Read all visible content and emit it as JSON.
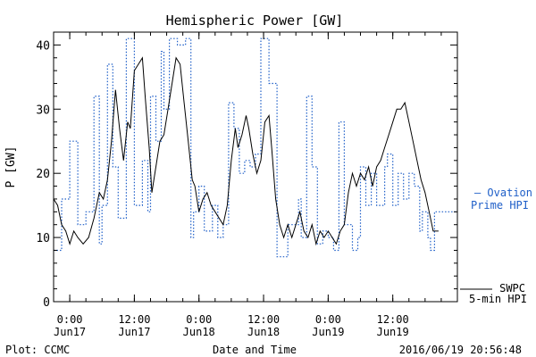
{
  "chart_data": {
    "type": "line",
    "title": "Hemispheric Power [GW]",
    "xlabel": "Date and Time",
    "ylabel": "P [GW]",
    "xlim": [
      "2016-06-16T21:00",
      "2016-06-20T00:00"
    ],
    "ylim": [
      0,
      42
    ],
    "grid": false,
    "y_ticks": [
      0,
      10,
      20,
      30,
      40
    ],
    "x_ticks": [
      {
        "t": "2016-06-17T00:00",
        "time": "0:00",
        "date": "Jun17"
      },
      {
        "t": "2016-06-17T12:00",
        "time": "12:00",
        "date": "Jun17"
      },
      {
        "t": "2016-06-18T00:00",
        "time": "0:00",
        "date": "Jun18"
      },
      {
        "t": "2016-06-18T12:00",
        "time": "12:00",
        "date": "Jun18"
      },
      {
        "t": "2016-06-19T00:00",
        "time": "0:00",
        "date": "Jun19"
      },
      {
        "t": "2016-06-19T12:00",
        "time": "12:00",
        "date": "Jun19"
      }
    ],
    "series": [
      {
        "name": "— Ovation Prime HPI",
        "legend_lines": [
          "— Ovation",
          "Prime HPI"
        ],
        "color": "#1f5fc8",
        "style": "dotted-step",
        "points": [
          [
            "2016-06-16T21:00",
            8
          ],
          [
            "2016-06-16T22:30",
            16
          ],
          [
            "2016-06-17T00:00",
            25
          ],
          [
            "2016-06-17T01:30",
            12
          ],
          [
            "2016-06-17T03:00",
            14
          ],
          [
            "2016-06-17T04:30",
            32
          ],
          [
            "2016-06-17T05:30",
            9
          ],
          [
            "2016-06-17T06:00",
            15
          ],
          [
            "2016-06-17T07:00",
            37
          ],
          [
            "2016-06-17T08:00",
            21
          ],
          [
            "2016-06-17T09:00",
            13
          ],
          [
            "2016-06-17T10:30",
            41
          ],
          [
            "2016-06-17T12:00",
            15
          ],
          [
            "2016-06-17T13:30",
            22
          ],
          [
            "2016-06-17T14:30",
            14
          ],
          [
            "2016-06-17T15:00",
            32
          ],
          [
            "2016-06-17T16:00",
            25
          ],
          [
            "2016-06-17T17:00",
            39
          ],
          [
            "2016-06-17T17:30",
            30
          ],
          [
            "2016-06-17T18:30",
            41
          ],
          [
            "2016-06-17T20:00",
            40
          ],
          [
            "2016-06-17T21:30",
            41
          ],
          [
            "2016-06-17T22:30",
            10
          ],
          [
            "2016-06-17T23:00",
            14
          ],
          [
            "2016-06-18T00:00",
            18
          ],
          [
            "2016-06-18T01:00",
            11
          ],
          [
            "2016-06-18T02:30",
            15
          ],
          [
            "2016-06-18T03:30",
            10
          ],
          [
            "2016-06-18T04:30",
            12
          ],
          [
            "2016-06-18T05:30",
            31
          ],
          [
            "2016-06-18T06:30",
            27
          ],
          [
            "2016-06-18T07:30",
            20
          ],
          [
            "2016-06-18T08:30",
            22
          ],
          [
            "2016-06-18T09:30",
            21
          ],
          [
            "2016-06-18T10:30",
            23
          ],
          [
            "2016-06-18T11:30",
            41
          ],
          [
            "2016-06-18T13:00",
            34
          ],
          [
            "2016-06-18T14:30",
            7
          ],
          [
            "2016-06-18T15:30",
            7
          ],
          [
            "2016-06-18T16:30",
            12
          ],
          [
            "2016-06-18T17:30",
            12
          ],
          [
            "2016-06-18T18:30",
            16
          ],
          [
            "2016-06-18T19:00",
            10
          ],
          [
            "2016-06-18T20:00",
            32
          ],
          [
            "2016-06-18T21:00",
            21
          ],
          [
            "2016-06-18T22:00",
            9
          ],
          [
            "2016-06-18T23:00",
            11
          ],
          [
            "2016-06-19T00:00",
            10
          ],
          [
            "2016-06-19T01:00",
            8
          ],
          [
            "2016-06-19T02:00",
            28
          ],
          [
            "2016-06-19T03:00",
            12
          ],
          [
            "2016-06-19T04:30",
            8
          ],
          [
            "2016-06-19T05:30",
            10
          ],
          [
            "2016-06-19T06:00",
            21
          ],
          [
            "2016-06-19T07:00",
            15
          ],
          [
            "2016-06-19T08:00",
            20
          ],
          [
            "2016-06-19T09:00",
            15
          ],
          [
            "2016-06-19T10:30",
            21
          ],
          [
            "2016-06-19T11:00",
            23
          ],
          [
            "2016-06-19T12:00",
            15
          ],
          [
            "2016-06-19T13:00",
            20
          ],
          [
            "2016-06-19T14:00",
            16
          ],
          [
            "2016-06-19T15:00",
            20
          ],
          [
            "2016-06-19T16:00",
            18
          ],
          [
            "2016-06-19T17:00",
            11
          ],
          [
            "2016-06-19T17:30",
            14
          ],
          [
            "2016-06-19T18:30",
            10
          ],
          [
            "2016-06-19T19:00",
            8
          ],
          [
            "2016-06-19T19:45",
            14
          ]
        ]
      },
      {
        "name": "SWPC 5-min HPI",
        "legend_lines": [
          "SWPC",
          "5-min HPI"
        ],
        "color": "#000000",
        "style": "solid",
        "points": [
          [
            "2016-06-16T21:00",
            16
          ],
          [
            "2016-06-16T21:45",
            15
          ],
          [
            "2016-06-16T22:30",
            12
          ],
          [
            "2016-06-16T23:15",
            11
          ],
          [
            "2016-06-17T00:00",
            9
          ],
          [
            "2016-06-17T00:45",
            11
          ],
          [
            "2016-06-17T01:30",
            10
          ],
          [
            "2016-06-17T02:30",
            9
          ],
          [
            "2016-06-17T03:30",
            10
          ],
          [
            "2016-06-17T04:30",
            13
          ],
          [
            "2016-06-17T05:30",
            17
          ],
          [
            "2016-06-17T06:15",
            16
          ],
          [
            "2016-06-17T07:00",
            19
          ],
          [
            "2016-06-17T07:45",
            25
          ],
          [
            "2016-06-17T08:30",
            33
          ],
          [
            "2016-06-17T09:15",
            27
          ],
          [
            "2016-06-17T10:00",
            22
          ],
          [
            "2016-06-17T10:45",
            28
          ],
          [
            "2016-06-17T11:15",
            27
          ],
          [
            "2016-06-17T12:00",
            36
          ],
          [
            "2016-06-17T12:45",
            37
          ],
          [
            "2016-06-17T13:30",
            38
          ],
          [
            "2016-06-17T14:00",
            32
          ],
          [
            "2016-06-17T14:45",
            24
          ],
          [
            "2016-06-17T15:15",
            17
          ],
          [
            "2016-06-17T16:00",
            21
          ],
          [
            "2016-06-17T16:45",
            25
          ],
          [
            "2016-06-17T17:30",
            26
          ],
          [
            "2016-06-17T18:15",
            30
          ],
          [
            "2016-06-17T19:00",
            34
          ],
          [
            "2016-06-17T19:45",
            38
          ],
          [
            "2016-06-17T20:30",
            37
          ],
          [
            "2016-06-17T21:15",
            31
          ],
          [
            "2016-06-17T22:00",
            25
          ],
          [
            "2016-06-17T22:45",
            19
          ],
          [
            "2016-06-17T23:15",
            18
          ],
          [
            "2016-06-18T00:00",
            14
          ],
          [
            "2016-06-18T00:45",
            16
          ],
          [
            "2016-06-18T01:30",
            17
          ],
          [
            "2016-06-18T02:15",
            15
          ],
          [
            "2016-06-18T03:00",
            14
          ],
          [
            "2016-06-18T03:45",
            13
          ],
          [
            "2016-06-18T04:30",
            12
          ],
          [
            "2016-06-18T05:15",
            15
          ],
          [
            "2016-06-18T06:00",
            22
          ],
          [
            "2016-06-18T06:45",
            27
          ],
          [
            "2016-06-18T07:15",
            24
          ],
          [
            "2016-06-18T08:00",
            26
          ],
          [
            "2016-06-18T08:45",
            29
          ],
          [
            "2016-06-18T09:15",
            27
          ],
          [
            "2016-06-18T10:00",
            23
          ],
          [
            "2016-06-18T10:45",
            20
          ],
          [
            "2016-06-18T11:30",
            22
          ],
          [
            "2016-06-18T12:15",
            28
          ],
          [
            "2016-06-18T13:00",
            29
          ],
          [
            "2016-06-18T13:30",
            24
          ],
          [
            "2016-06-18T14:15",
            16
          ],
          [
            "2016-06-18T15:00",
            12
          ],
          [
            "2016-06-18T15:45",
            10
          ],
          [
            "2016-06-18T16:30",
            12
          ],
          [
            "2016-06-18T17:15",
            10
          ],
          [
            "2016-06-18T18:00",
            12
          ],
          [
            "2016-06-18T18:45",
            14
          ],
          [
            "2016-06-18T19:30",
            11
          ],
          [
            "2016-06-18T20:15",
            10
          ],
          [
            "2016-06-18T21:00",
            12
          ],
          [
            "2016-06-18T21:45",
            9
          ],
          [
            "2016-06-18T22:30",
            11
          ],
          [
            "2016-06-18T23:15",
            10
          ],
          [
            "2016-06-19T00:00",
            11
          ],
          [
            "2016-06-19T00:45",
            10
          ],
          [
            "2016-06-19T01:30",
            9
          ],
          [
            "2016-06-19T02:15",
            11
          ],
          [
            "2016-06-19T03:00",
            12
          ],
          [
            "2016-06-19T03:45",
            17
          ],
          [
            "2016-06-19T04:30",
            20
          ],
          [
            "2016-06-19T05:15",
            18
          ],
          [
            "2016-06-19T06:00",
            20
          ],
          [
            "2016-06-19T06:45",
            19
          ],
          [
            "2016-06-19T07:30",
            21
          ],
          [
            "2016-06-19T08:15",
            18
          ],
          [
            "2016-06-19T09:00",
            21
          ],
          [
            "2016-06-19T09:45",
            22
          ],
          [
            "2016-06-19T10:30",
            24
          ],
          [
            "2016-06-19T11:15",
            26
          ],
          [
            "2016-06-19T12:00",
            28
          ],
          [
            "2016-06-19T12:45",
            30
          ],
          [
            "2016-06-19T13:30",
            30
          ],
          [
            "2016-06-19T14:15",
            31
          ],
          [
            "2016-06-19T15:00",
            28
          ],
          [
            "2016-06-19T15:45",
            25
          ],
          [
            "2016-06-19T16:30",
            22
          ],
          [
            "2016-06-19T17:15",
            19
          ],
          [
            "2016-06-19T18:00",
            17
          ],
          [
            "2016-06-19T18:45",
            14
          ],
          [
            "2016-06-19T19:30",
            11
          ],
          [
            "2016-06-19T20:30",
            11
          ]
        ]
      }
    ]
  },
  "footer": {
    "source": "Plot: CCMC",
    "timestamp": "2016/06/19 20:56:48"
  },
  "colors": {
    "ovation": "#1f5fc8",
    "swpc": "#000000",
    "axes": "#000000"
  }
}
